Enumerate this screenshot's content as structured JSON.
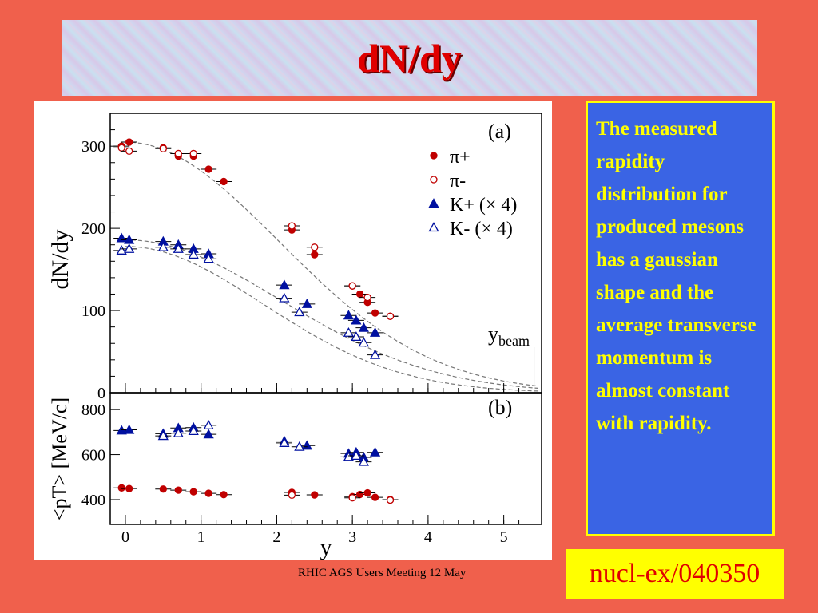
{
  "slide": {
    "title": "dN/dy",
    "description": "The measured rapidity distribution for produced mesons has a gaussian shape and the average transverse momentum is almost constant with rapidity.",
    "footer": "RHIC AGS Users Meeting 12 May",
    "reference": "nucl-ex/040350"
  },
  "colors": {
    "background": "#f0604c",
    "red_marker": "#c00000",
    "blue_marker": "#0010a0",
    "text_box": "#3a64e4",
    "text_yellow": "#ffff00"
  },
  "chart_data": [
    {
      "type": "scatter",
      "panel_label": "(a)",
      "ylabel": "dN/dy",
      "xlim": [
        -0.2,
        5.5
      ],
      "ylim": [
        0,
        340
      ],
      "yticks": [
        "0",
        "100",
        "200",
        "300"
      ],
      "annotation": "y_beam",
      "annotation_x": 5.4,
      "series": [
        {
          "name": "π+",
          "marker": "filled-circle",
          "color": "#c00000",
          "x": [
            -0.05,
            0.05,
            0.5,
            0.7,
            0.9,
            1.1,
            1.3,
            2.2,
            2.5,
            3.0,
            3.1,
            3.2,
            3.3,
            3.5
          ],
          "y": [
            300,
            305,
            298,
            288,
            288,
            272,
            257,
            198,
            168,
            130,
            120,
            110,
            97,
            93
          ]
        },
        {
          "name": "π-",
          "marker": "open-circle",
          "color": "#c00000",
          "x": [
            -0.05,
            0.05,
            0.5,
            0.7,
            0.9,
            2.2,
            2.5,
            3.0,
            3.2,
            3.5
          ],
          "y": [
            298,
            294,
            297,
            291,
            291,
            203,
            177,
            130,
            116,
            93
          ]
        },
        {
          "name": "K+ (× 4)",
          "marker": "filled-triangle",
          "color": "#0010a0",
          "x": [
            -0.05,
            0.05,
            0.5,
            0.7,
            0.9,
            1.1,
            2.1,
            2.4,
            2.95,
            3.05,
            3.15,
            3.3
          ],
          "y": [
            188,
            186,
            184,
            180,
            175,
            169,
            131,
            108,
            94,
            88,
            79,
            73
          ]
        },
        {
          "name": "K- (× 4)",
          "marker": "open-triangle",
          "color": "#0010a0",
          "x": [
            -0.05,
            0.05,
            0.5,
            0.7,
            0.9,
            1.1,
            2.1,
            2.3,
            2.95,
            3.05,
            3.15,
            3.3
          ],
          "y": [
            173,
            175,
            177,
            175,
            168,
            163,
            115,
            98,
            73,
            68,
            61,
            46
          ]
        }
      ],
      "fits": [
        {
          "amp": 305,
          "sigma": 2.02
        },
        {
          "amp": 186,
          "sigma": 2.05
        },
        {
          "amp": 178,
          "sigma": 1.82
        }
      ]
    },
    {
      "type": "scatter",
      "panel_label": "(b)",
      "xlabel": "y",
      "ylabel": "<pT> [MeV/c]",
      "xlim": [
        -0.2,
        5.5
      ],
      "ylim": [
        290,
        875
      ],
      "xticks": [
        "0",
        "1",
        "2",
        "3",
        "4",
        "5"
      ],
      "yticks": [
        "400",
        "600",
        "800"
      ],
      "series": [
        {
          "name": "π+",
          "marker": "filled-circle",
          "color": "#c00000",
          "x": [
            -0.05,
            0.05,
            0.5,
            0.7,
            0.9,
            1.1,
            1.3,
            2.2,
            2.5,
            3.0,
            3.1,
            3.2,
            3.3,
            3.5
          ],
          "y": [
            452,
            449,
            447,
            442,
            435,
            428,
            422,
            432,
            421,
            413,
            423,
            430,
            410,
            400
          ]
        },
        {
          "name": "π-",
          "marker": "open-circle",
          "color": "#c00000",
          "x": [
            2.2,
            3.0,
            3.5
          ],
          "y": [
            420,
            408,
            398
          ]
        },
        {
          "name": "K+ (× 4)",
          "marker": "filled-triangle",
          "color": "#0010a0",
          "x": [
            -0.05,
            0.05,
            0.5,
            0.7,
            0.9,
            1.1,
            2.1,
            2.4,
            2.95,
            3.05,
            3.15,
            3.3
          ],
          "y": [
            707,
            710,
            693,
            718,
            720,
            690,
            660,
            640,
            605,
            610,
            588,
            610
          ]
        },
        {
          "name": "K- (× 4)",
          "marker": "open-triangle",
          "color": "#0010a0",
          "x": [
            0.5,
            0.7,
            0.9,
            1.1,
            2.1,
            2.3,
            2.95,
            3.05,
            3.15
          ],
          "y": [
            683,
            695,
            705,
            730,
            652,
            635,
            590,
            595,
            568
          ]
        }
      ]
    }
  ]
}
